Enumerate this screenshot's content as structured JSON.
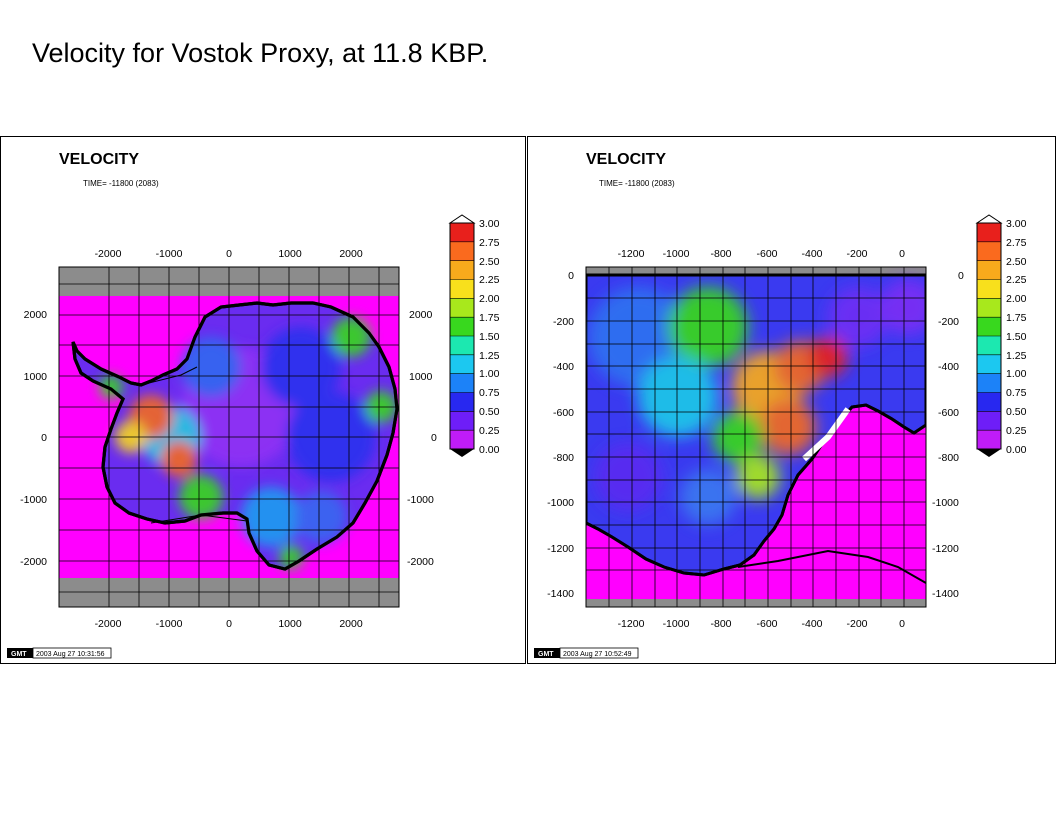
{
  "slide": {
    "title": "Velocity for Vostok Proxy, at 11.8 KBP."
  },
  "colors": {
    "ocean": "#ff00ff",
    "border": "#8c8c8c",
    "grid": "#000000"
  },
  "colorbar": {
    "labels": [
      "3.00",
      "2.75",
      "2.50",
      "2.25",
      "2.00",
      "1.75",
      "1.50",
      "1.25",
      "1.00",
      "0.75",
      "0.50",
      "0.25",
      "0.00"
    ],
    "band_colors": [
      "#e8201c",
      "#fa6a1e",
      "#f8aa1c",
      "#f8e01c",
      "#a8e81c",
      "#38d81e",
      "#1ce8b0",
      "#1cc8f0",
      "#1c82f8",
      "#2828f0",
      "#6e1ef8",
      "#c01cf8"
    ]
  },
  "panels": [
    {
      "id": "left",
      "title": "VELOCITY",
      "time": "TIME= -11800 (2083)",
      "x_ticks": [
        "-2000",
        "-1000",
        "0",
        "1000",
        "2000"
      ],
      "y_ticks": [
        "2000",
        "1000",
        "0",
        "-1000",
        "-2000"
      ],
      "gmt_label": "GMT",
      "gmt_stamp": "2003 Aug 27 10:31:56"
    },
    {
      "id": "right",
      "title": "VELOCITY",
      "time": "TIME= -11800 (2083)",
      "x_ticks": [
        "-1200",
        "-1000",
        "-800",
        "-600",
        "-400",
        "-200",
        "0"
      ],
      "y_ticks": [
        "0",
        "-200",
        "-400",
        "-600",
        "-800",
        "-1000",
        "-1200",
        "-1400"
      ],
      "gmt_label": "GMT",
      "gmt_stamp": "2003 Aug 27 10:52:49"
    }
  ]
}
